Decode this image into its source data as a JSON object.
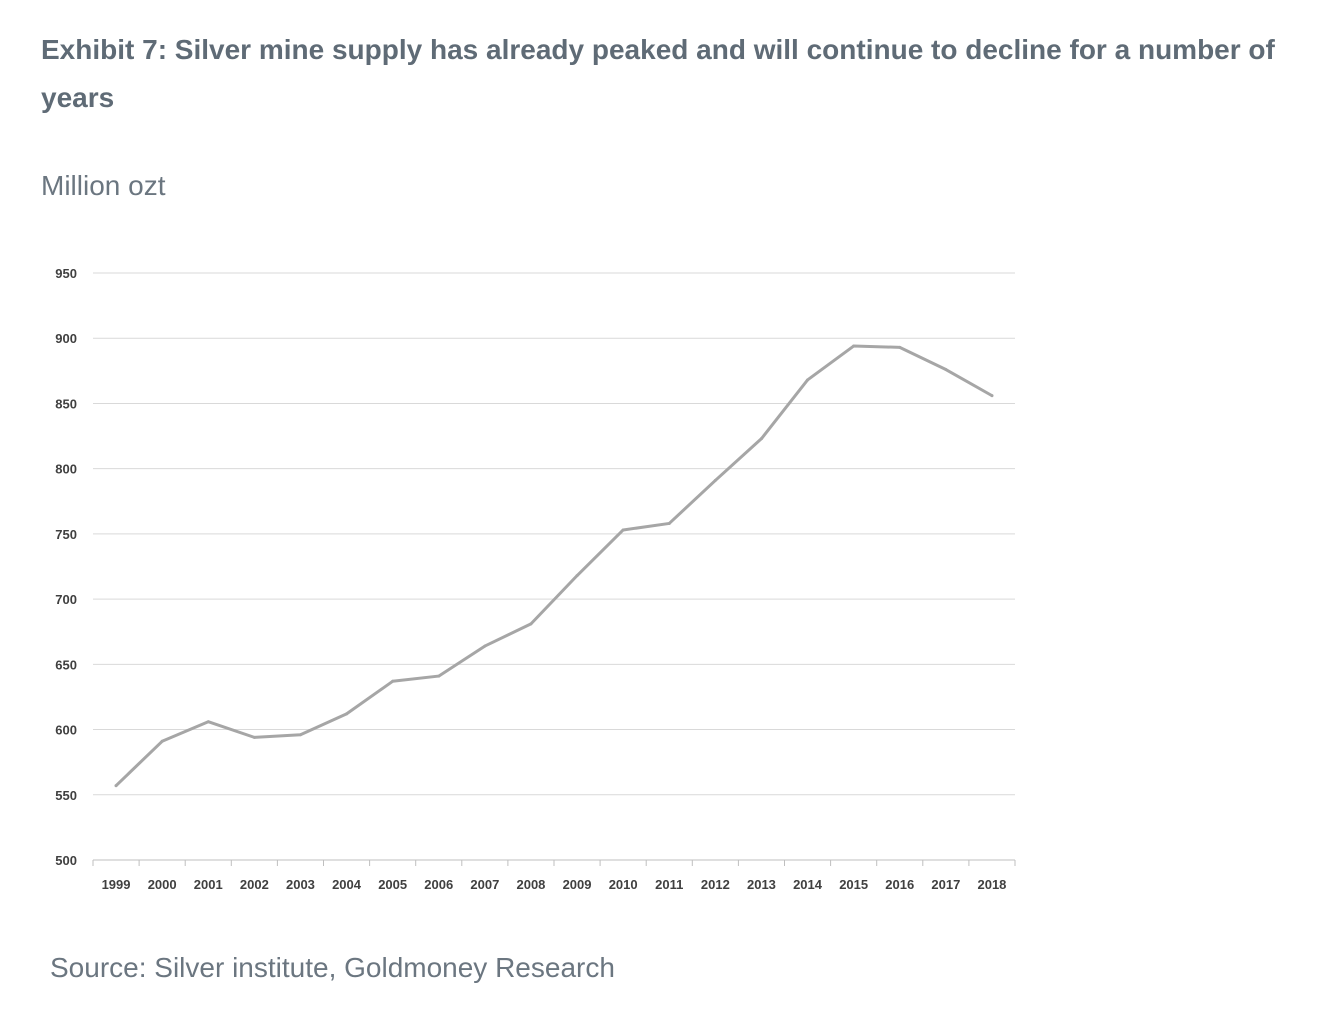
{
  "title": "Exhibit 7: Silver mine supply has already peaked and will continue to decline for a number of years",
  "unit_label": "Million ozt",
  "source": "Source: Silver institute, Goldmoney Research",
  "colors": {
    "line": "#a6a6a6",
    "grid": "#d9d9d9",
    "axis": "#bfbfbf",
    "text": "#5f6b76"
  },
  "chart_data": {
    "type": "line",
    "x": [
      "1999",
      "2000",
      "2001",
      "2002",
      "2003",
      "2004",
      "2005",
      "2006",
      "2007",
      "2008",
      "2009",
      "2010",
      "2011",
      "2012",
      "2013",
      "2014",
      "2015",
      "2016",
      "2017",
      "2018"
    ],
    "series": [
      {
        "values": [
          557,
          591,
          606,
          594,
          596,
          612,
          637,
          641,
          664,
          681,
          718,
          753,
          758,
          791,
          823,
          868,
          894,
          893,
          876,
          856
        ]
      }
    ],
    "ylim": [
      500,
      950
    ],
    "yticks": [
      500,
      550,
      600,
      650,
      700,
      750,
      800,
      850,
      900,
      950
    ],
    "ylabel": "Million ozt",
    "grid": true,
    "legend": "none"
  }
}
